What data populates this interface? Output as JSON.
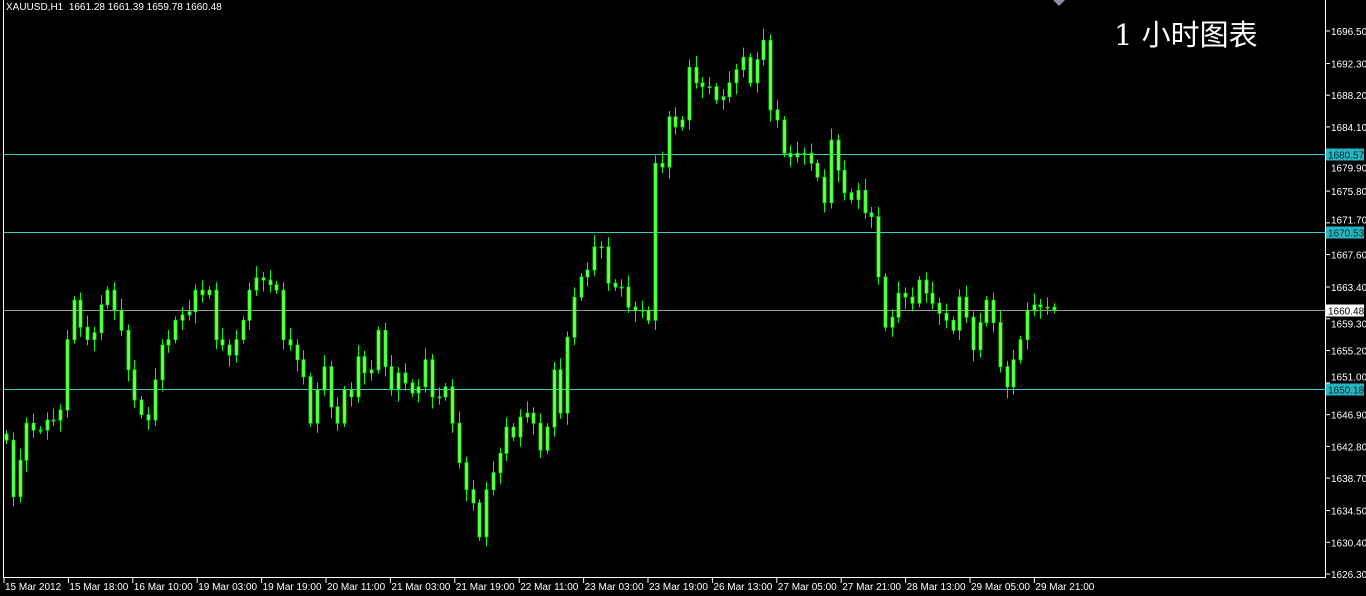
{
  "header": {
    "symbol": "XAUUSD,H1",
    "ohlc": "1661.28 1661.39 1659.78 1660.48"
  },
  "overlay_title": "1 小时图表",
  "colors": {
    "background": "#000000",
    "candle": "#00ff00",
    "candle_fill": "#7cfc5c",
    "level_line": "#3cc8c8",
    "level_label_bg": "#27b5bf",
    "price_line": "#9a9a9a",
    "axis": "#ffffff"
  },
  "chart_data": {
    "type": "candlestick",
    "symbol": "XAUUSD",
    "timeframe": "H1",
    "ylim": [
      1626.3,
      1696.5
    ],
    "grid": false,
    "y_ticks": [
      "1696.50",
      "1692.30",
      "1688.20",
      "1684.10",
      "1679.90",
      "1675.80",
      "1671.70",
      "1667.60",
      "1663.40",
      "1659.30",
      "1655.20",
      "1651.00",
      "1646.90",
      "1642.80",
      "1638.70",
      "1634.50",
      "1630.40",
      "1626.30"
    ],
    "x_ticks": [
      "15 Mar 2012",
      "15 Mar 18:00",
      "16 Mar 10:00",
      "19 Mar 03:00",
      "19 Mar 19:00",
      "20 Mar 11:00",
      "21 Mar 03:00",
      "21 Mar 19:00",
      "22 Mar 11:00",
      "23 Mar 03:00",
      "23 Mar 19:00",
      "26 Mar 13:00",
      "27 Mar 05:00",
      "27 Mar 21:00",
      "28 Mar 13:00",
      "29 Mar 05:00",
      "29 Mar 21:00"
    ],
    "levels": [
      {
        "price": 1680.57,
        "label": "1680.57",
        "kind": "horizontal-line"
      },
      {
        "price": 1670.53,
        "label": "1670.53",
        "kind": "horizontal-line"
      },
      {
        "price": 1650.18,
        "label": "1650.18",
        "kind": "horizontal-line"
      }
    ],
    "current_price": {
      "price": 1660.48,
      "label": "1660.48"
    },
    "close": [
      1643.6,
      1636.3,
      1641.0,
      1645.8,
      1644.9,
      1644.9,
      1646.2,
      1646.2,
      1647.5,
      1656.6,
      1661.7,
      1658.2,
      1656.6,
      1657.5,
      1661.1,
      1663.0,
      1660.4,
      1657.8,
      1652.7,
      1648.8,
      1646.9,
      1646.2,
      1651.4,
      1655.9,
      1656.6,
      1659.1,
      1659.8,
      1660.2,
      1663.0,
      1662.4,
      1663.0,
      1656.6,
      1655.9,
      1654.6,
      1656.6,
      1659.1,
      1663.0,
      1664.6,
      1664.3,
      1663.7,
      1663.0,
      1656.6,
      1655.9,
      1654.0,
      1651.8,
      1645.8,
      1650.1,
      1653.1,
      1647.9,
      1645.8,
      1650.1,
      1649.2,
      1654.4,
      1652.3,
      1652.7,
      1657.8,
      1653.1,
      1650.1,
      1652.3,
      1651.0,
      1649.7,
      1650.5,
      1654.0,
      1649.2,
      1649.2,
      1650.5,
      1645.8,
      1640.7,
      1637.2,
      1635.5,
      1631.1,
      1637.2,
      1639.4,
      1641.9,
      1645.3,
      1644.0,
      1646.6,
      1647.1,
      1645.8,
      1642.3,
      1645.3,
      1652.7,
      1647.1,
      1656.9,
      1662.1,
      1664.7,
      1665.6,
      1668.6,
      1668.6,
      1663.9,
      1663.4,
      1663.4,
      1660.8,
      1660.4,
      1660.4,
      1659.1,
      1679.4,
      1678.9,
      1685.4,
      1684.1,
      1685.0,
      1691.8,
      1689.8,
      1689.3,
      1689.3,
      1687.6,
      1688.0,
      1689.8,
      1691.5,
      1693.1,
      1689.8,
      1692.8,
      1695.3,
      1686.3,
      1685.0,
      1680.7,
      1680.2,
      1680.7,
      1680.7,
      1679.4,
      1677.6,
      1674.3,
      1682.4,
      1678.5,
      1675.6,
      1674.7,
      1675.9,
      1673.0,
      1672.5,
      1664.7,
      1658.2,
      1659.5,
      1662.6,
      1662.1,
      1661.3,
      1664.3,
      1662.6,
      1661.3,
      1660.0,
      1659.1,
      1657.8,
      1662.1,
      1659.5,
      1655.3,
      1658.8,
      1661.7,
      1658.8,
      1653.1,
      1650.5,
      1654.0,
      1656.6,
      1660.4,
      1661.1,
      1660.8,
      1660.8,
      1660.48
    ]
  }
}
